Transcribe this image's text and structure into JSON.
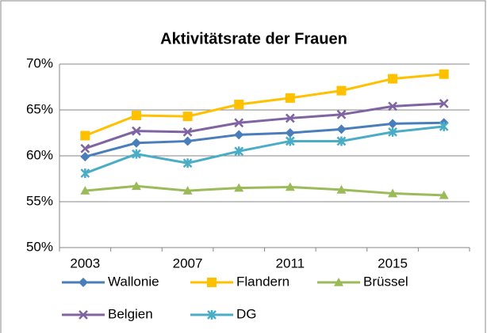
{
  "chart_data": {
    "type": "line",
    "title": "Aktivitätsrate der Frauen",
    "categories": [
      "2003",
      null,
      "2007",
      null,
      "2011",
      null,
      "2015",
      null
    ],
    "series": [
      {
        "name": "Wallonie",
        "color": "#4a7ebb",
        "marker": "diamond",
        "values": [
          59.9,
          61.4,
          61.6,
          62.3,
          62.5,
          62.9,
          63.5,
          63.6
        ]
      },
      {
        "name": "Flandern",
        "color": "#ffc000",
        "marker": "square",
        "values": [
          62.2,
          64.4,
          64.3,
          65.6,
          66.3,
          67.1,
          68.4,
          68.9
        ]
      },
      {
        "name": "Brüssel",
        "color": "#9bbb59",
        "marker": "triangle",
        "values": [
          56.2,
          56.7,
          56.2,
          56.5,
          56.6,
          56.3,
          55.9,
          55.7
        ]
      },
      {
        "name": "Belgien",
        "color": "#8064a2",
        "marker": "x",
        "values": [
          60.8,
          62.7,
          62.6,
          63.6,
          64.1,
          64.5,
          65.4,
          65.7
        ]
      },
      {
        "name": "DG",
        "color": "#4bacc6",
        "marker": "star",
        "values": [
          58.1,
          60.2,
          59.2,
          60.5,
          61.6,
          61.6,
          62.6,
          63.2
        ]
      }
    ],
    "ylim": [
      50,
      70
    ],
    "yticks": [
      {
        "value": 50,
        "label": "50%"
      },
      {
        "value": 55,
        "label": "55%"
      },
      {
        "value": 60,
        "label": "60%"
      },
      {
        "value": 65,
        "label": "65%"
      },
      {
        "value": 70,
        "label": "70%"
      }
    ],
    "grid": true,
    "legend": "bottom"
  }
}
